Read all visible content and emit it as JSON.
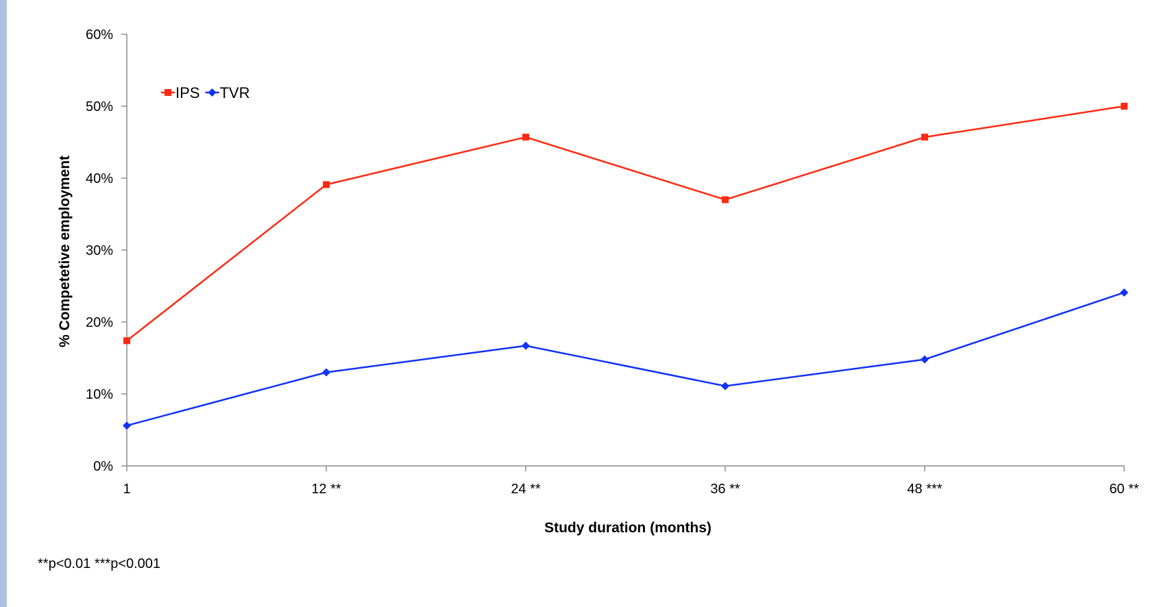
{
  "chart_data": {
    "type": "line",
    "categories": [
      "1",
      "12 **",
      "24 **",
      "36 **",
      "48 ***",
      "60 **"
    ],
    "series": [
      {
        "name": "IPS",
        "values": [
          17.4,
          39.1,
          45.7,
          37.0,
          45.7,
          50.0
        ],
        "color": "#ff2a12",
        "marker": "square"
      },
      {
        "name": "TVR",
        "values": [
          5.6,
          13.0,
          16.7,
          11.1,
          14.8,
          24.1
        ],
        "color": "#1232f5",
        "marker": "diamond"
      }
    ],
    "xlabel": "Study duration (months)",
    "ylabel": "% Competetive employment",
    "ylim": [
      0,
      60
    ],
    "yticks": [
      "0%",
      "10%",
      "20%",
      "30%",
      "40%",
      "50%",
      "60%"
    ],
    "grid": false,
    "legend_position": "top-left",
    "footnote": "**p<0.01 ***p<0.001"
  }
}
